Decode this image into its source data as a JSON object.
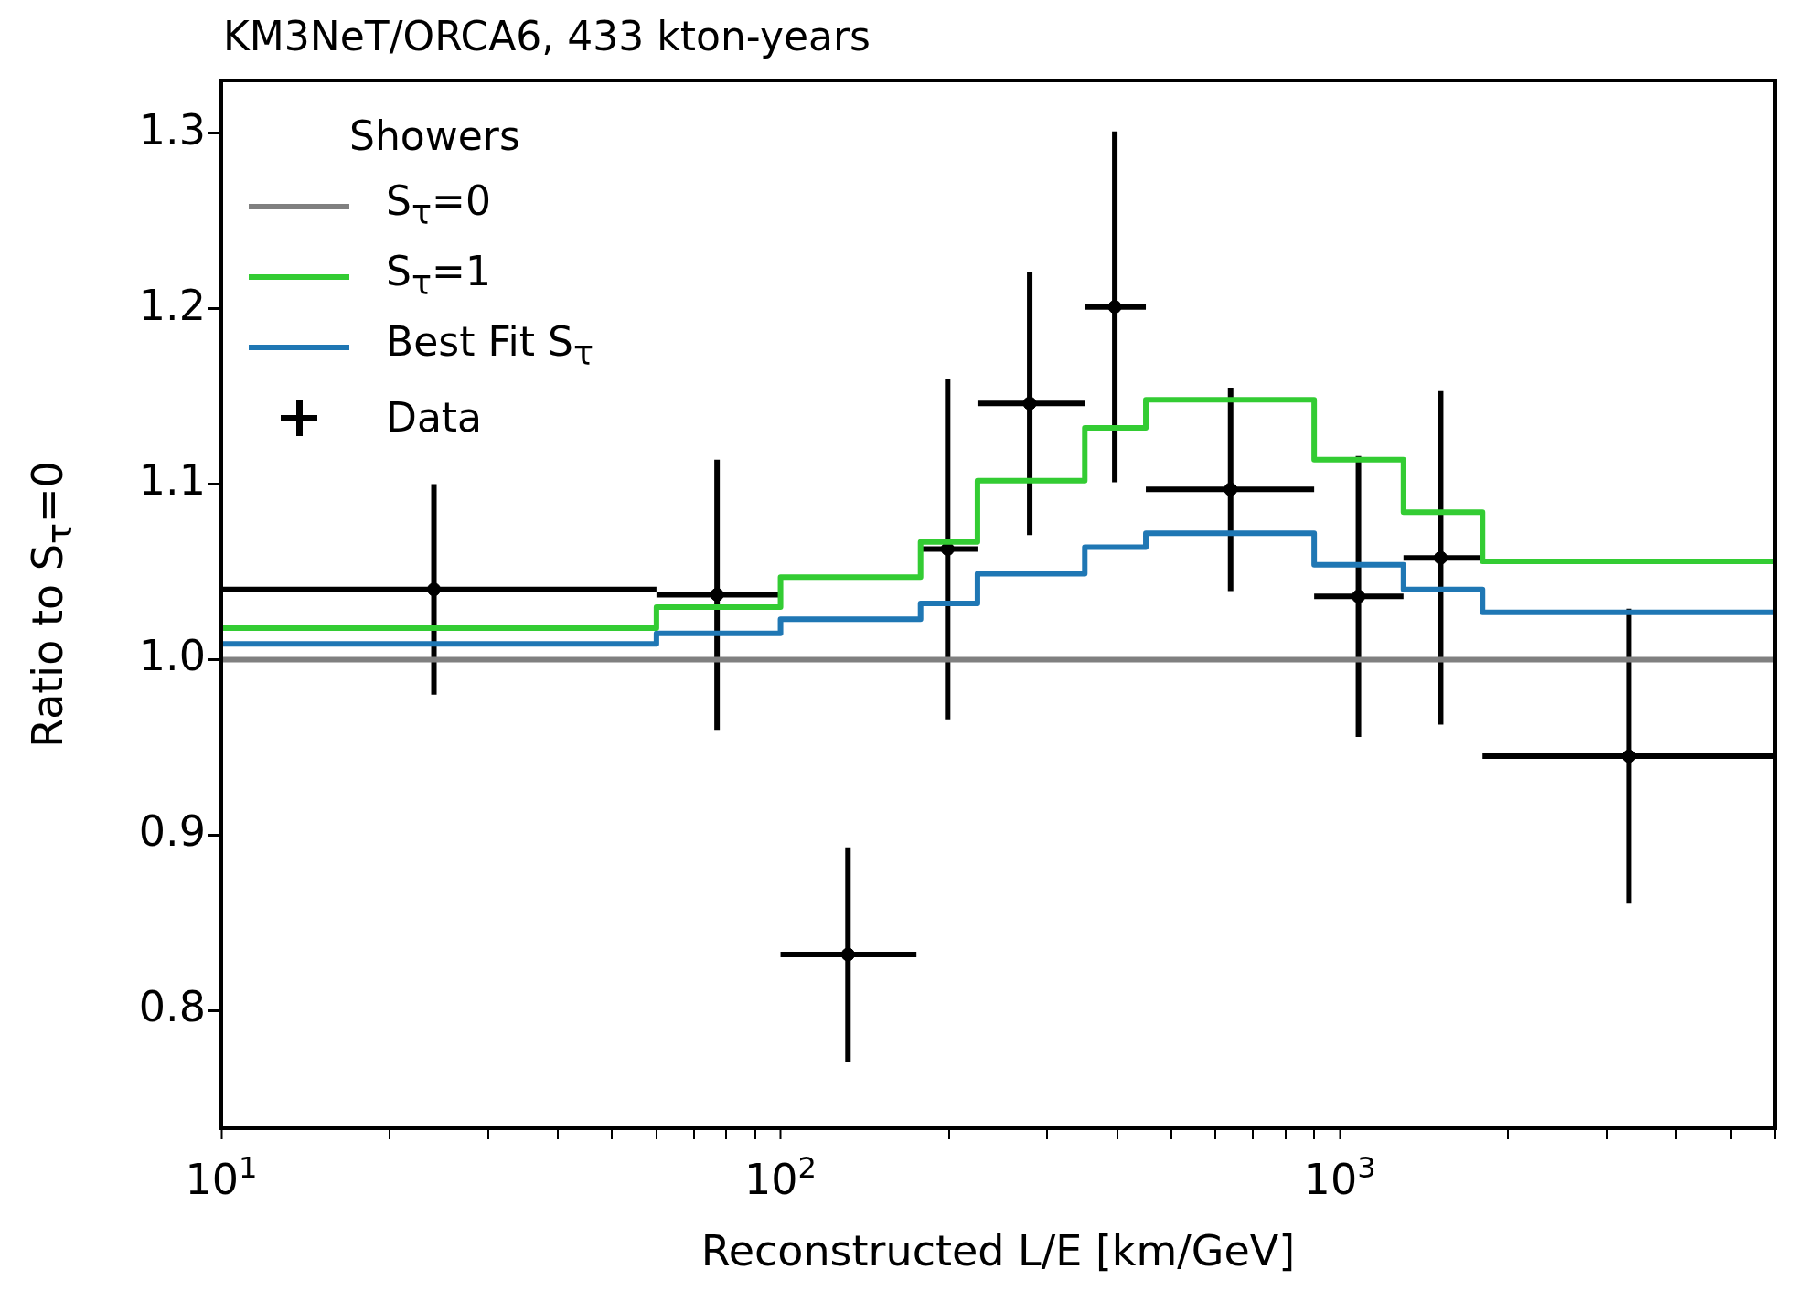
{
  "chart_data": {
    "type": "step",
    "title": "KM3NeT/ORCA6, 433 kton-years",
    "xlabel": "Reconstructed L/E [km/GeV]",
    "ylabel": "Ratio to S$_{τ}$=0",
    "legend_title": "Showers",
    "legend": "top left",
    "log": "x",
    "xlim": [
      10,
      6000
    ],
    "ylim": [
      0.733,
      1.33
    ],
    "xticks": [
      {
        "value": 10,
        "label": "10$^{1}$"
      },
      {
        "value": 20,
        "label": null
      },
      {
        "value": 30,
        "label": null
      },
      {
        "value": 40,
        "label": null
      },
      {
        "value": 50,
        "label": null
      },
      {
        "value": 60,
        "label": null
      },
      {
        "value": 70,
        "label": null
      },
      {
        "value": 80,
        "label": null
      },
      {
        "value": 90,
        "label": null
      },
      {
        "value": 100,
        "label": "10$^{2}$"
      },
      {
        "value": 200,
        "label": null
      },
      {
        "value": 300,
        "label": null
      },
      {
        "value": 400,
        "label": null
      },
      {
        "value": 500,
        "label": null
      },
      {
        "value": 600,
        "label": null
      },
      {
        "value": 700,
        "label": null
      },
      {
        "value": 800,
        "label": null
      },
      {
        "value": 900,
        "label": null
      },
      {
        "value": 1000,
        "label": "10$^{3}$"
      },
      {
        "value": 2000,
        "label": null
      },
      {
        "value": 3000,
        "label": null
      },
      {
        "value": 4000,
        "label": null
      },
      {
        "value": 5000,
        "label": null
      },
      {
        "value": 6000,
        "label": null
      }
    ],
    "yticks": [
      0.8,
      0.9,
      {
        "value": 1,
        "label": "1.0"
      },
      1.1,
      1.2,
      1.3
    ],
    "series": [
      {
        "name": "S$_{τ}$=0",
        "type": "line",
        "color": "#808080",
        "x": [
          10,
          6000
        ],
        "values": [
          1,
          1
        ]
      },
      {
        "name": "S$_{τ}$=1",
        "color": "#33cc33",
        "x": [
          10,
          60,
          100,
          178,
          225,
          350,
          450,
          900,
          1300,
          1800,
          6000
        ],
        "values": [
          1.018,
          1.03,
          1.047,
          1.067,
          1.102,
          1.132,
          1.148,
          1.114,
          1.084,
          1.056,
          1.056
        ]
      },
      {
        "name": "Best Fit S$_{τ}$",
        "color": "#1f77b4",
        "x": [
          10,
          60,
          100,
          178,
          225,
          350,
          450,
          900,
          1300,
          1800,
          6000
        ],
        "values": [
          1.009,
          1.015,
          1.023,
          1.032,
          1.049,
          1.064,
          1.072,
          1.054,
          1.04,
          1.027,
          1.027
        ]
      },
      {
        "name": "Data",
        "type": "scatter",
        "marker": "circle",
        "color": "#000000",
        "x": [
          24,
          77,
          132,
          199,
          279,
          396,
          638,
          1080,
          1515,
          3290
        ],
        "values": [
          1.04,
          1.037,
          0.832,
          1.063,
          1.146,
          1.201,
          1.097,
          1.036,
          1.058,
          0.945
        ],
        "errors": [
          0.06,
          0.077,
          0.061,
          0.097,
          0.075,
          0.1,
          0.058,
          0.08,
          0.095,
          0.084
        ],
        "xerrors": [
          [
            10,
            60
          ],
          [
            60,
            100
          ],
          [
            100,
            175
          ],
          [
            178,
            225
          ],
          [
            225,
            350
          ],
          [
            350,
            450
          ],
          [
            450,
            900
          ],
          [
            900,
            1300
          ],
          [
            1300,
            1800
          ],
          [
            1800,
            6000
          ]
        ]
      }
    ]
  }
}
